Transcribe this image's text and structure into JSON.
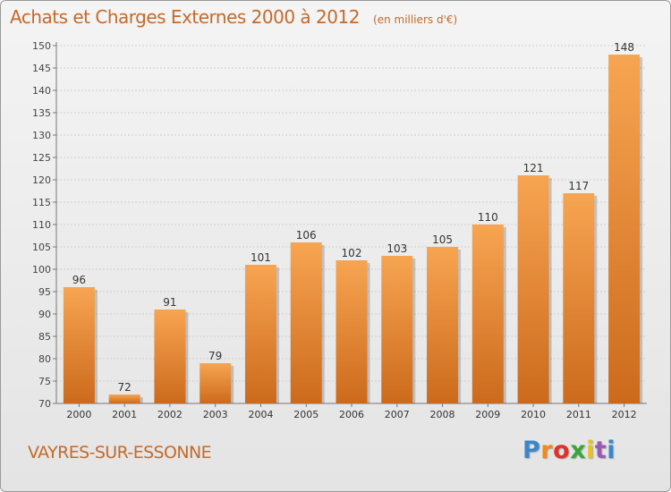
{
  "header": {
    "title": "Achats et Charges Externes 2000 à 2012",
    "unit": "(en milliers d'€)"
  },
  "footer": {
    "commune": "VAYRES-SUR-ESSONNE",
    "logo": "Proxiti"
  },
  "colors": {
    "accent": "#c46a2b",
    "bar_light": "#f7a552",
    "bar_dark": "#cc6a1c",
    "grid": "#cfcfcf"
  },
  "chart_data": {
    "type": "bar",
    "title": "Achats et Charges Externes 2000 à 2012",
    "subtitle": "(en milliers d'€)",
    "xlabel": "",
    "ylabel": "",
    "categories": [
      "2000",
      "2001",
      "2002",
      "2003",
      "2004",
      "2005",
      "2006",
      "2007",
      "2008",
      "2009",
      "2010",
      "2011",
      "2012"
    ],
    "values": [
      96,
      72,
      91,
      79,
      101,
      106,
      102,
      103,
      105,
      110,
      121,
      117,
      148
    ],
    "ylim": [
      70,
      150
    ],
    "yticks": [
      70,
      75,
      80,
      85,
      90,
      95,
      100,
      105,
      110,
      115,
      120,
      125,
      130,
      135,
      140,
      145,
      150
    ],
    "grid": true,
    "data_labels": true,
    "legend": "none"
  }
}
